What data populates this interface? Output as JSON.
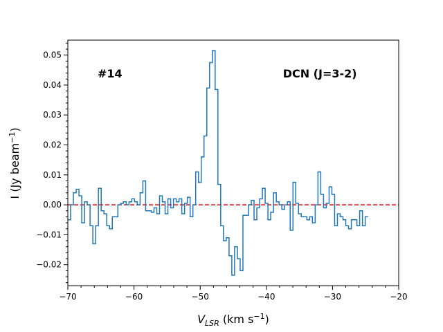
{
  "chart_data": {
    "type": "line",
    "style": "step",
    "xlabel_main": "V",
    "xlabel_sub": "LSR",
    "xlabel_units": " (km s",
    "xlabel_exp": "−1",
    "xlabel_close": ")",
    "ylabel_main": "I (Jy beam",
    "ylabel_exp": "−1",
    "ylabel_close": ")",
    "xlim": [
      -70,
      -20
    ],
    "ylim": [
      -0.027,
      0.055
    ],
    "xticks": [
      -70,
      -60,
      -50,
      -40,
      -30,
      -20
    ],
    "xtick_labels": [
      "−70",
      "−60",
      "−50",
      "−40",
      "−30",
      "−20"
    ],
    "yticks": [
      -0.02,
      -0.01,
      0.0,
      0.01,
      0.02,
      0.03,
      0.04,
      0.05
    ],
    "ytick_labels": [
      "−0.02",
      "−0.01",
      "0.00",
      "0.01",
      "0.02",
      "0.03",
      "0.04",
      "0.05"
    ],
    "annotations": [
      {
        "text": "#14",
        "x": -65.5,
        "y": 0.0425,
        "anchor": "start"
      },
      {
        "text": "DCN (J=3-2)",
        "x": -37.5,
        "y": 0.0425,
        "anchor": "start"
      }
    ],
    "baseline": {
      "y": 0.0,
      "style": "dashed",
      "color": "#e8000b"
    },
    "series": [
      {
        "name": "DCN (J=3-2)",
        "color": "#1f77b4",
        "x_start": -70.0,
        "x_step": 0.42,
        "values": [
          -0.005,
          0.0,
          0.004,
          0.0052,
          0.003,
          -0.006,
          0.001,
          0.0,
          -0.007,
          -0.013,
          -0.007,
          0.0055,
          -0.002,
          -0.003,
          -0.007,
          -0.008,
          -0.004,
          -0.004,
          0.0,
          0.0005,
          0.001,
          0.0,
          0.001,
          0.002,
          0.001,
          0.0,
          0.004,
          0.008,
          -0.002,
          -0.002,
          -0.0025,
          -0.001,
          -0.003,
          0.003,
          0.001,
          -0.003,
          0.002,
          -0.001,
          0.002,
          0.001,
          0.002,
          -0.003,
          0.0005,
          0.0025,
          -0.004,
          0.0,
          0.011,
          0.0075,
          0.016,
          0.023,
          0.039,
          0.0475,
          0.0515,
          0.0385,
          0.0068,
          -0.007,
          -0.012,
          -0.011,
          -0.017,
          -0.0235,
          -0.014,
          -0.018,
          -0.022,
          -0.0035,
          -0.0035,
          0.0,
          0.0015,
          -0.005,
          -0.001,
          0.002,
          0.0055,
          0.0005,
          -0.005,
          -0.0025,
          0.004,
          0.001,
          0.0,
          -0.0015,
          0.0,
          0.001,
          -0.0085,
          0.0075,
          0.0005,
          -0.003,
          -0.004,
          -0.004,
          -0.005,
          -0.004,
          -0.006,
          0.0,
          0.011,
          0.0035,
          -0.001,
          0.0005,
          0.006,
          0.0035,
          -0.007,
          -0.003,
          -0.004,
          -0.005,
          -0.007,
          -0.008,
          -0.005,
          -0.005,
          -0.007,
          -0.002,
          -0.007,
          -0.004
        ]
      }
    ]
  }
}
